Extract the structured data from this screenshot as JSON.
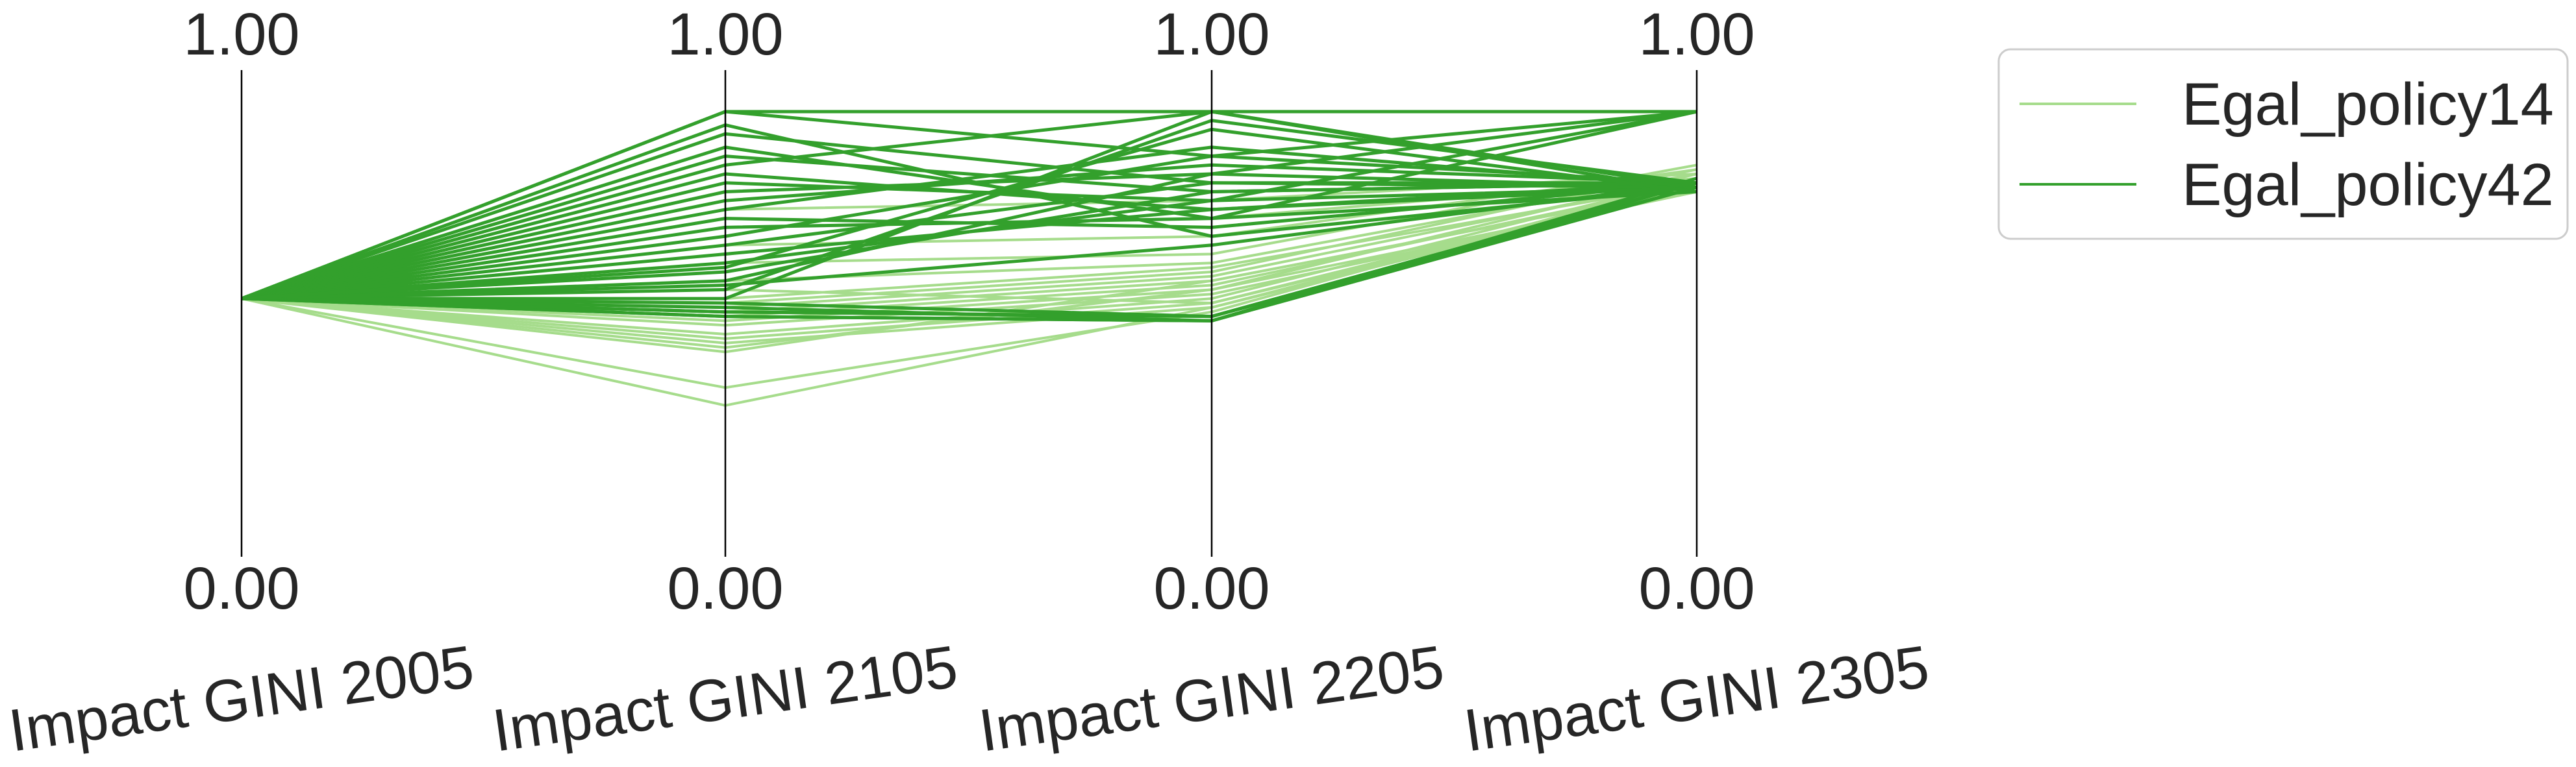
{
  "chart_data": {
    "type": "parallel_coordinates",
    "title": "",
    "axes": [
      {
        "name": "Impact GINI 2005",
        "range": [
          0,
          1
        ],
        "ticks": [
          "1.00",
          "0.00"
        ]
      },
      {
        "name": "Impact GINI 2105",
        "range": [
          0,
          1
        ],
        "ticks": [
          "1.00",
          "0.00"
        ]
      },
      {
        "name": "Impact GINI 2205",
        "range": [
          0,
          1
        ],
        "ticks": [
          "1.00",
          "0.00"
        ]
      },
      {
        "name": "Impact GINI 2305",
        "range": [
          0,
          1
        ],
        "ticks": [
          "1.00",
          "0.00"
        ]
      }
    ],
    "grid": false,
    "legend_position": "right",
    "series": [
      {
        "name": "Egal_policy14",
        "color": "#a6dc8c",
        "lines": [
          [
            0.58,
            0.48,
            0.56,
            0.83
          ],
          [
            0.58,
            0.49,
            0.57,
            0.84
          ],
          [
            0.58,
            0.5,
            0.58,
            0.85
          ],
          [
            0.58,
            0.52,
            0.59,
            0.82
          ],
          [
            0.58,
            0.53,
            0.6,
            0.86
          ],
          [
            0.58,
            0.54,
            0.61,
            0.84
          ],
          [
            0.58,
            0.55,
            0.62,
            0.83
          ],
          [
            0.58,
            0.56,
            0.63,
            0.85
          ],
          [
            0.58,
            0.57,
            0.64,
            0.87
          ],
          [
            0.58,
            0.58,
            0.65,
            0.84
          ],
          [
            0.58,
            0.47,
            0.6,
            0.82
          ],
          [
            0.58,
            0.46,
            0.62,
            0.83
          ],
          [
            0.58,
            0.38,
            0.55,
            0.85
          ],
          [
            0.58,
            0.34,
            0.56,
            0.84
          ],
          [
            0.58,
            0.62,
            0.66,
            0.86
          ],
          [
            0.58,
            0.66,
            0.68,
            0.88
          ],
          [
            0.58,
            0.7,
            0.72,
            0.87
          ],
          [
            0.58,
            0.74,
            0.76,
            0.85
          ],
          [
            0.58,
            0.78,
            0.8,
            0.86
          ],
          [
            0.58,
            0.6,
            0.57,
            0.83
          ]
        ]
      },
      {
        "name": "Egal_policy42",
        "color": "#33a02c",
        "lines": [
          [
            0.58,
            0.54,
            0.53,
            0.83
          ],
          [
            0.58,
            0.54,
            0.53,
            0.84
          ],
          [
            0.58,
            0.55,
            0.54,
            0.83
          ],
          [
            0.58,
            0.55,
            0.54,
            0.84
          ],
          [
            0.58,
            0.56,
            0.53,
            0.85
          ],
          [
            0.58,
            0.57,
            0.54,
            0.84
          ],
          [
            0.58,
            0.58,
            1.0,
            0.82
          ],
          [
            0.58,
            0.6,
            0.98,
            0.84
          ],
          [
            0.58,
            0.62,
            0.86,
            0.83
          ],
          [
            0.58,
            0.64,
            0.82,
            0.84
          ],
          [
            0.58,
            0.66,
            0.8,
            1.0
          ],
          [
            0.58,
            0.68,
            0.78,
            0.83
          ],
          [
            0.58,
            0.7,
            0.84,
            0.84
          ],
          [
            0.58,
            0.72,
            0.9,
            1.0
          ],
          [
            0.58,
            0.74,
            0.76,
            0.82
          ],
          [
            0.58,
            0.76,
            0.74,
            0.84
          ],
          [
            0.58,
            0.78,
            0.92,
            0.83
          ],
          [
            0.58,
            0.8,
            0.88,
            0.84
          ],
          [
            0.58,
            0.82,
            0.86,
            1.0
          ],
          [
            0.58,
            0.84,
            0.8,
            0.83
          ],
          [
            0.58,
            0.86,
            0.78,
            0.84
          ],
          [
            0.58,
            0.88,
            1.0,
            0.83
          ],
          [
            0.58,
            0.9,
            0.82,
            0.84
          ],
          [
            0.58,
            0.92,
            0.76,
            1.0
          ],
          [
            0.58,
            0.95,
            0.84,
            0.83
          ],
          [
            0.58,
            1.0,
            1.0,
            1.0
          ],
          [
            0.58,
            1.0,
            0.9,
            0.84
          ],
          [
            0.58,
            0.97,
            0.72,
            0.83
          ],
          [
            0.58,
            0.61,
            0.7,
            0.84
          ],
          [
            0.58,
            0.65,
            0.96,
            0.82
          ]
        ]
      }
    ]
  }
}
